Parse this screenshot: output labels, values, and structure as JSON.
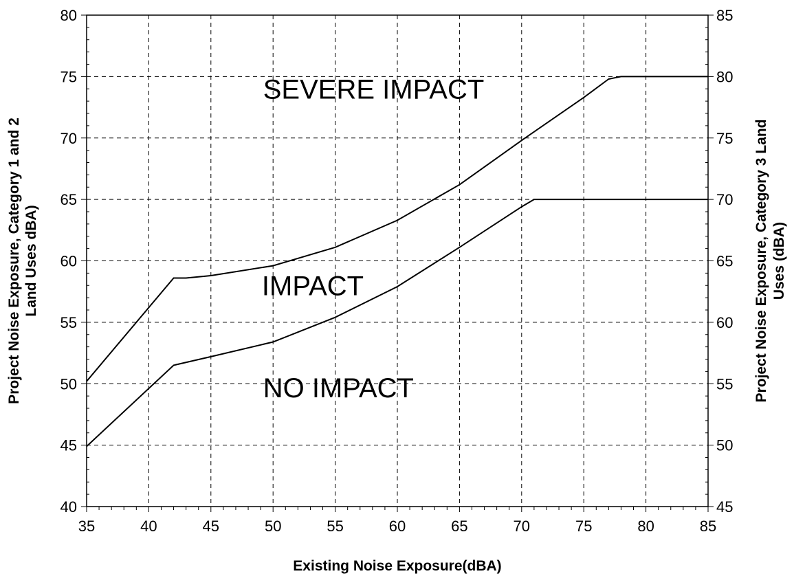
{
  "chart_data": {
    "type": "line",
    "xlabel": "Existing Noise Exposure(dBA)",
    "ylabel_left_line1": "Project Noise Exposure, Category 1 and 2",
    "ylabel_left_line2": "Land Uses dBA)",
    "ylabel_right_line1": "Project Noise Exposure, Category 3 Land",
    "ylabel_right_line2": "Uses (dBA)",
    "xlim": [
      35,
      85
    ],
    "ylim_left": [
      40,
      80
    ],
    "ylim_right": [
      45,
      85
    ],
    "x_ticks": [
      "35",
      "40",
      "45",
      "50",
      "55",
      "60",
      "65",
      "70",
      "75",
      "80",
      "85"
    ],
    "y_left_ticks": [
      "40",
      "45",
      "50",
      "55",
      "60",
      "65",
      "70",
      "75",
      "80"
    ],
    "y_right_ticks": [
      "45",
      "50",
      "55",
      "60",
      "65",
      "70",
      "75",
      "80",
      "85"
    ],
    "grid": true,
    "series": [
      {
        "x": [
          35,
          42,
          43,
          45,
          50,
          55,
          60,
          65,
          70,
          75,
          77,
          78,
          85
        ],
        "values": [
          50.2,
          58.6,
          58.6,
          58.8,
          59.6,
          61.1,
          63.3,
          66.2,
          69.8,
          73.3,
          74.8,
          75.0,
          75.0
        ]
      },
      {
        "x": [
          35,
          42,
          45,
          50,
          55,
          60,
          65,
          70,
          71,
          85
        ],
        "values": [
          44.9,
          51.5,
          52.2,
          53.4,
          55.4,
          57.9,
          61.1,
          64.4,
          65.0,
          65.0
        ]
      }
    ],
    "annotations": [
      {
        "text": "SEVERE IMPACT",
        "x": 49.2,
        "y": 73.2
      },
      {
        "text": "IMPACT",
        "x": 49.1,
        "y": 57.2
      },
      {
        "text": "NO IMPACT",
        "x": 49.2,
        "y": 48.9
      }
    ]
  }
}
